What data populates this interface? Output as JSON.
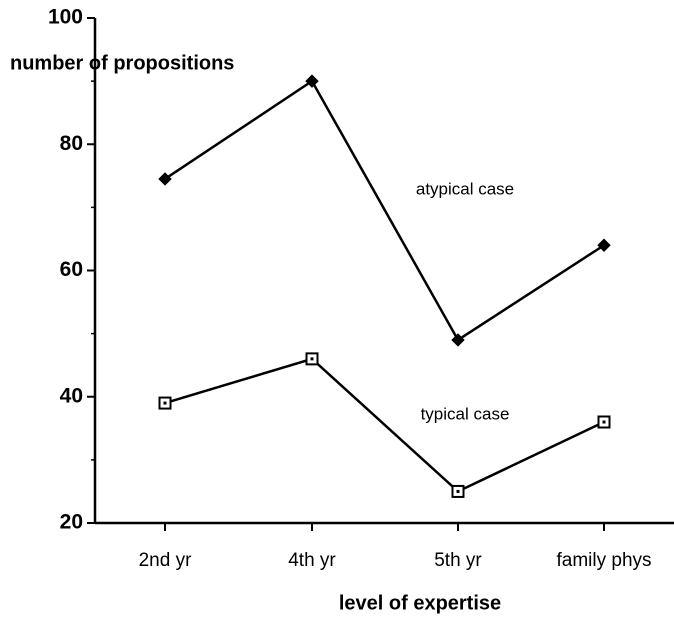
{
  "chart_data": {
    "type": "line",
    "y_label": "number of propositions",
    "x_label": "level of expertise",
    "categories": [
      "2nd yr",
      "4th yr",
      "5th yr",
      "family phys"
    ],
    "series": [
      {
        "name": "atypical case",
        "color": "#000000",
        "marker": "diamond",
        "values": [
          74.5,
          90,
          49,
          64
        ]
      },
      {
        "name": "typical case",
        "color": "#000000",
        "marker": "square",
        "values": [
          39,
          46,
          25,
          36
        ]
      }
    ],
    "ylim": [
      20,
      100
    ],
    "yticks": [
      20,
      40,
      60,
      80,
      100
    ],
    "minor_yticks": [
      30,
      50,
      70,
      90
    ],
    "grid": false
  }
}
